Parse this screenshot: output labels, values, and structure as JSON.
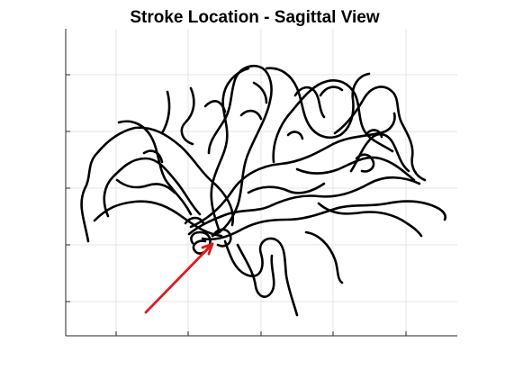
{
  "chart_data": {
    "type": "line",
    "title": "Stroke Location - Sagittal View",
    "xlabel": "",
    "ylabel": "",
    "grid": true,
    "x_tick_labels": [],
    "y_tick_labels": [],
    "colors": {
      "vessels": "#000000",
      "stroke_arrow": "#e11b1b",
      "grid": "#e6e6e6",
      "axes": "#262626"
    }
  }
}
